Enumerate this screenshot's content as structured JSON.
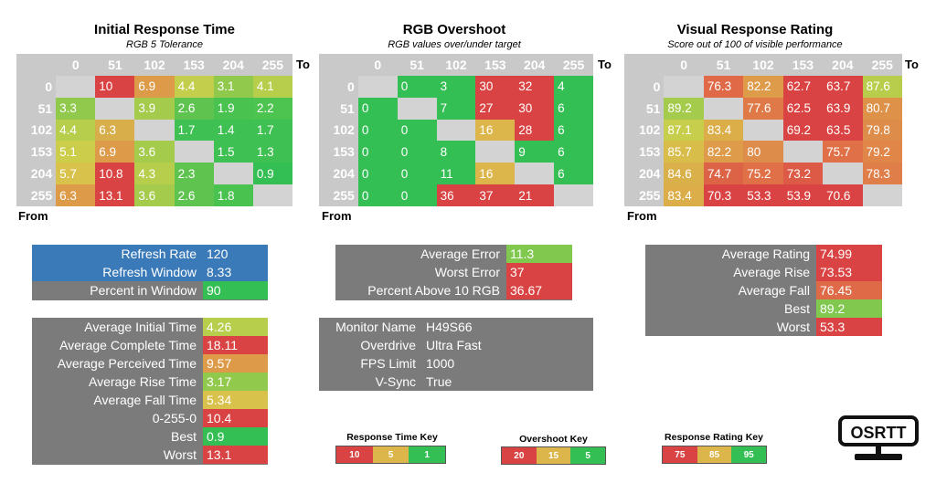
{
  "chart_data": [
    {
      "type": "heatmap",
      "title": "Initial Response Time",
      "subtitle": "RGB 5 Tolerance",
      "x_axis_label": "To",
      "y_axis_label": "From",
      "columns": [
        "0",
        "51",
        "102",
        "153",
        "204",
        "255"
      ],
      "rows": [
        "0",
        "51",
        "102",
        "153",
        "204",
        "255"
      ],
      "values": [
        [
          null,
          "10",
          "6.9",
          "4.4",
          "3.1",
          "4.1"
        ],
        [
          "3.3",
          null,
          "3.9",
          "2.6",
          "1.9",
          "2.2"
        ],
        [
          "4.4",
          "6.3",
          null,
          "1.7",
          "1.4",
          "1.7"
        ],
        [
          "5.1",
          "6.9",
          "3.6",
          null,
          "1.5",
          "1.3"
        ],
        [
          "5.7",
          "10.8",
          "4.3",
          "2.3",
          null,
          "0.9"
        ],
        [
          "6.3",
          "13.1",
          "3.6",
          "2.6",
          "1.8",
          null
        ]
      ],
      "colors": [
        [
          null,
          "#da4343",
          "#dd9b4a",
          "#c3ce4c",
          "#91c94d",
          "#b7cd4c"
        ],
        [
          "#91c94d",
          null,
          "#a4cb4c",
          "#5ec44f",
          "#49c250",
          "#4dc350"
        ],
        [
          "#b7cd4c",
          "#d8ae4a",
          null,
          "#3ec052",
          "#3ec052",
          "#3ec052"
        ],
        [
          "#ccce4b",
          "#dd9b4a",
          "#a4cb4c",
          null,
          "#3ec052",
          "#3ec052"
        ],
        [
          "#d8c24b",
          "#da4343",
          "#b7cd4c",
          "#5ec44f",
          null,
          "#33bf53"
        ],
        [
          "#dd9b4a",
          "#da4343",
          "#a4cb4c",
          "#5ec44f",
          "#49c250",
          null
        ]
      ]
    },
    {
      "type": "heatmap",
      "title": "RGB Overshoot",
      "subtitle": "RGB values over/under target",
      "x_axis_label": "To",
      "y_axis_label": "From",
      "columns": [
        "0",
        "51",
        "102",
        "153",
        "204",
        "255"
      ],
      "rows": [
        "0",
        "51",
        "102",
        "153",
        "204",
        "255"
      ],
      "values": [
        [
          null,
          "0",
          "3",
          "30",
          "32",
          "4"
        ],
        [
          "0",
          null,
          "7",
          "27",
          "30",
          "6"
        ],
        [
          "0",
          "0",
          null,
          "16",
          "28",
          "6"
        ],
        [
          "0",
          "0",
          "8",
          null,
          "9",
          "6"
        ],
        [
          "0",
          "0",
          "11",
          "16",
          null,
          "6"
        ],
        [
          "0",
          "0",
          "36",
          "37",
          "21",
          null
        ]
      ],
      "colors": [
        [
          null,
          "#33bf53",
          "#33bf53",
          "#da4343",
          "#da4343",
          "#33bf53"
        ],
        [
          "#33bf53",
          null,
          "#33bf53",
          "#da4343",
          "#da4343",
          "#33bf53"
        ],
        [
          "#33bf53",
          "#33bf53",
          null,
          "#dcb54b",
          "#da4343",
          "#33bf53"
        ],
        [
          "#33bf53",
          "#33bf53",
          "#33bf53",
          null,
          "#33bf53",
          "#33bf53"
        ],
        [
          "#33bf53",
          "#33bf53",
          "#33bf53",
          "#dcb54b",
          null,
          "#33bf53"
        ],
        [
          "#33bf53",
          "#33bf53",
          "#da4343",
          "#da4343",
          "#da4343",
          null
        ]
      ]
    },
    {
      "type": "heatmap",
      "title": "Visual Response Rating",
      "subtitle": "Score out of 100 of visible performance",
      "x_axis_label": "To",
      "y_axis_label": "From",
      "columns": [
        "0",
        "51",
        "102",
        "153",
        "204",
        "255"
      ],
      "rows": [
        "0",
        "51",
        "102",
        "153",
        "204",
        "255"
      ],
      "values": [
        [
          null,
          "76.3",
          "82.2",
          "62.7",
          "63.7",
          "87.6"
        ],
        [
          "89.2",
          null,
          "77.6",
          "62.5",
          "63.9",
          "80.7"
        ],
        [
          "87.1",
          "83.4",
          null,
          "69.2",
          "63.5",
          "79.8"
        ],
        [
          "85.7",
          "82.2",
          "80",
          null,
          "75.7",
          "79.2"
        ],
        [
          "84.6",
          "74.7",
          "75.2",
          "73.2",
          null,
          "78.3"
        ],
        [
          "83.4",
          "70.3",
          "53.3",
          "53.9",
          "70.6",
          null
        ]
      ],
      "colors": [
        [
          null,
          "#e06a47",
          "#de9b4a",
          "#da4343",
          "#da4343",
          "#b9cd4c"
        ],
        [
          "#a4cb4c",
          null,
          "#df7a48",
          "#da4343",
          "#da4343",
          "#de9149"
        ],
        [
          "#c6ce4b",
          "#dbae4a",
          null,
          "#da4343",
          "#da4343",
          "#de8c49"
        ],
        [
          "#d8bd4b",
          "#de9b4a",
          "#de8c49",
          null,
          "#df7048",
          "#e08649"
        ],
        [
          "#dab04a",
          "#dd6347",
          "#df7048",
          "#dc5a46",
          null,
          "#df7e48"
        ],
        [
          "#dbae4a",
          "#da4343",
          "#da4343",
          "#da4343",
          "#da4343",
          null
        ]
      ]
    }
  ],
  "summaries": {
    "refresh": [
      {
        "label": "Refresh Rate",
        "value": "120",
        "label_color": "#3a7ab8",
        "value_color": "#3a7ab8"
      },
      {
        "label": "Refresh Window",
        "value": "8.33",
        "label_color": "#3a7ab8",
        "value_color": "#3a7ab8"
      },
      {
        "label": "Percent in Window",
        "value": "90",
        "label_color": "#7b7b7b",
        "value_color": "#33bf53"
      }
    ],
    "times": [
      {
        "label": "Average Initial Time",
        "value": "4.26",
        "value_color": "#b7cd4c"
      },
      {
        "label": "Average Complete Time",
        "value": "18.11",
        "value_color": "#da4343"
      },
      {
        "label": "Average Perceived Time",
        "value": "9.57",
        "value_color": "#dd9b4a"
      },
      {
        "label": "Average Rise Time",
        "value": "3.17",
        "value_color": "#91c94d"
      },
      {
        "label": "Average Fall Time",
        "value": "5.34",
        "value_color": "#d8c24b"
      },
      {
        "label": "0-255-0",
        "value": "10.4",
        "value_color": "#da4343"
      },
      {
        "label": "Best",
        "value": "0.9",
        "value_color": "#33bf53"
      },
      {
        "label": "Worst",
        "value": "13.1",
        "value_color": "#da4343"
      }
    ],
    "overshoot": [
      {
        "label": "Average Error",
        "value": "11.3",
        "value_color": "#80c84e"
      },
      {
        "label": "Worst Error",
        "value": "37",
        "value_color": "#da4343"
      },
      {
        "label": "Percent Above 10 RGB",
        "value": "36.67",
        "value_color": "#da4343"
      }
    ],
    "monitor": [
      {
        "label": "Monitor Name",
        "value": "H49S66"
      },
      {
        "label": "Overdrive",
        "value": "Ultra Fast"
      },
      {
        "label": "FPS Limit",
        "value": "1000"
      },
      {
        "label": "V-Sync",
        "value": "True"
      }
    ],
    "rating": [
      {
        "label": "Average Rating",
        "value": "74.99",
        "value_color": "#da4343"
      },
      {
        "label": "Average Rise",
        "value": "73.53",
        "value_color": "#da4343"
      },
      {
        "label": "Average Fall",
        "value": "76.45",
        "value_color": "#df6a47"
      },
      {
        "label": "Best",
        "value": "89.2",
        "value_color": "#80c84e"
      },
      {
        "label": "Worst",
        "value": "53.3",
        "value_color": "#da4343"
      }
    ]
  },
  "keys": [
    {
      "title": "Response Time Key",
      "items": [
        {
          "label": "10",
          "color": "#da4343"
        },
        {
          "label": "5",
          "color": "#dcb54b"
        },
        {
          "label": "1",
          "color": "#33bf53"
        }
      ]
    },
    {
      "title": "Overshoot Key",
      "items": [
        {
          "label": "20",
          "color": "#da4343"
        },
        {
          "label": "15",
          "color": "#dcb54b"
        },
        {
          "label": "5",
          "color": "#33bf53"
        }
      ]
    },
    {
      "title": "Response Rating Key",
      "items": [
        {
          "label": "75",
          "color": "#da4343"
        },
        {
          "label": "85",
          "color": "#dcb54b"
        },
        {
          "label": "95",
          "color": "#33bf53"
        }
      ]
    }
  ],
  "logo": {
    "text": "OSRTT"
  },
  "colors": {
    "header_gray": "#c9c9c9",
    "panel_gray": "#7b7b7b",
    "empty_cell": "#d3d3d3"
  }
}
